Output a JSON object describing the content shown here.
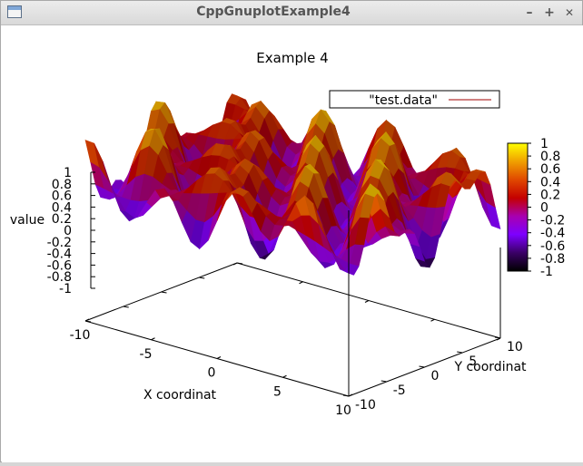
{
  "window": {
    "title": "CppGnuplotExample4",
    "buttons": {
      "minimize": "–",
      "maximize": "+",
      "close": "✕"
    }
  },
  "chart_data": {
    "type": "surface",
    "title": "Example 4",
    "legend": {
      "label": "\"test.data\"",
      "placement": "top-right",
      "line_color": "#a00000"
    },
    "xlabel": "X coordinat",
    "ylabel": "Y coordinat",
    "zlabel": "value",
    "xlim": [
      -10,
      10
    ],
    "ylim": [
      -10,
      10
    ],
    "zlim": [
      -1,
      1
    ],
    "x_ticks": [
      "-10",
      "-5",
      "0",
      "5",
      "10"
    ],
    "y_ticks": [
      "-10",
      "-5",
      "0",
      "5",
      "10"
    ],
    "z_ticks": [
      "1",
      "0.8",
      "0.6",
      "0.4",
      "0.2",
      "0",
      "-0.2",
      "-0.4",
      "-0.6",
      "-0.8",
      "-1"
    ],
    "colorbar": {
      "range": [
        -1,
        1
      ],
      "ticks": [
        "1",
        "0.8",
        "0.6",
        "0.4",
        "0.2",
        "0",
        "-0.2",
        "-0.4",
        "-0.6",
        "-0.8",
        "-1"
      ],
      "palette": [
        "#000000",
        "#3a0066",
        "#7d00ff",
        "#a800b0",
        "#c40000",
        "#e04800",
        "#f0a000",
        "#ffff00"
      ]
    }
  }
}
